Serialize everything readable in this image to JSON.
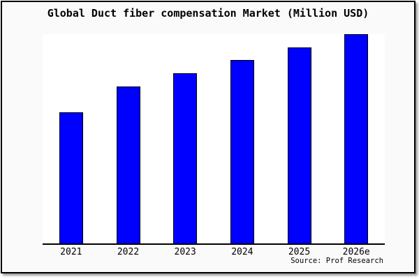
{
  "colors": {
    "bar_fill": "#0000ff",
    "bar_border": "#000000",
    "axis": "#000000",
    "card_background": "#fafafa",
    "plot_background": "#ffffff",
    "page_border": "#000000",
    "text": "#000000"
  },
  "chart_data": {
    "type": "bar",
    "title": "Global Duct fiber compensation Market (Million USD)",
    "categories": [
      "2021",
      "2022",
      "2023",
      "2024",
      "2025",
      "2026e"
    ],
    "values": [
      62.7,
      75.0,
      81.3,
      87.7,
      93.7,
      100.0
    ],
    "values_note": "no y-axis scale shown; values are percent of tallest bar (2026e)",
    "xlabel": "",
    "ylabel": "",
    "ylim": [
      0,
      100
    ],
    "grid": false,
    "legend": false,
    "bar_color": "#0000ff",
    "source": "Source: Prof Research"
  }
}
